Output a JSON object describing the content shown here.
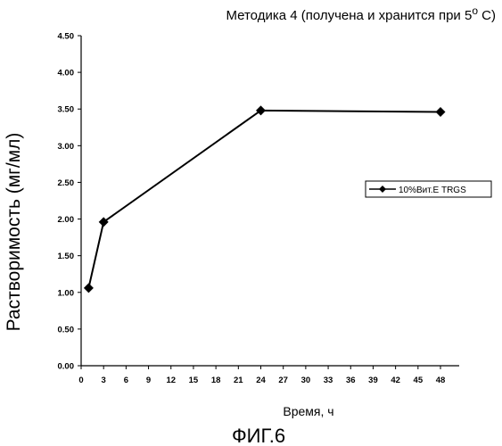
{
  "chart_data": {
    "type": "line",
    "title": "Методика 4 (получена и хранится при 5",
    "title_degree": "o",
    "title_suffix": " C)",
    "xlabel": "Время, ч",
    "ylabel": "Растворимость (мг/мл)",
    "caption": "ФИГ.6",
    "xlim": [
      0,
      50.5
    ],
    "ylim": [
      0,
      4.5
    ],
    "x_ticks": [
      "0",
      "3",
      "6",
      "9",
      "12",
      "15",
      "18",
      "21",
      "24",
      "27",
      "30",
      "33",
      "36",
      "39",
      "42",
      "45",
      "48"
    ],
    "y_ticks": [
      "0.00",
      "0.50",
      "1.00",
      "1.50",
      "2.00",
      "2.50",
      "3.00",
      "3.50",
      "4.00",
      "4.50"
    ],
    "series": [
      {
        "name": "10%Вит.Е TRGS",
        "x": [
          1,
          3,
          24,
          48
        ],
        "values": [
          1.06,
          1.96,
          3.48,
          3.46
        ],
        "marker": "diamond",
        "color": "#000000"
      }
    ],
    "grid": false,
    "legend_position": "right"
  }
}
